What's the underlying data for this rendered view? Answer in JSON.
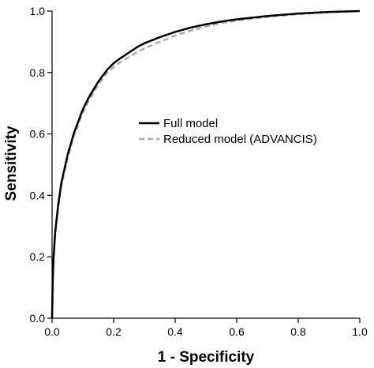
{
  "chart_data": {
    "type": "line",
    "xlabel": "1 - Specificity",
    "ylabel": "Sensitivity",
    "xlim": [
      0,
      1
    ],
    "ylim": [
      0,
      1
    ],
    "x_ticks": [
      "0.0",
      "0.2",
      "0.4",
      "0.6",
      "0.8",
      "1.0"
    ],
    "y_ticks": [
      "0.0",
      "0.2",
      "0.4",
      "0.6",
      "0.8",
      "1.0"
    ],
    "grid": false,
    "legend_position": "center-right",
    "series": [
      {
        "name": "Full model",
        "color": "#000000",
        "style": "solid",
        "x": [
          0,
          0.002,
          0.005,
          0.01,
          0.02,
          0.03,
          0.05,
          0.07,
          0.1,
          0.12,
          0.15,
          0.18,
          0.2,
          0.22,
          0.25,
          0.28,
          0.3,
          0.35,
          0.4,
          0.45,
          0.5,
          0.55,
          0.6,
          0.7,
          0.8,
          0.9,
          1.0
        ],
        "y": [
          0.0,
          0.12,
          0.2,
          0.28,
          0.37,
          0.44,
          0.53,
          0.6,
          0.68,
          0.72,
          0.77,
          0.81,
          0.83,
          0.845,
          0.865,
          0.885,
          0.895,
          0.915,
          0.932,
          0.946,
          0.957,
          0.966,
          0.973,
          0.984,
          0.992,
          0.997,
          1.0
        ]
      },
      {
        "name": "Reduced model (ADVANCIS)",
        "color": "#aaaaaa",
        "style": "dashed",
        "x": [
          0,
          0.002,
          0.005,
          0.01,
          0.02,
          0.03,
          0.05,
          0.07,
          0.1,
          0.12,
          0.15,
          0.18,
          0.2,
          0.22,
          0.25,
          0.28,
          0.3,
          0.35,
          0.4,
          0.45,
          0.5,
          0.55,
          0.6,
          0.7,
          0.8,
          0.9,
          1.0
        ],
        "y": [
          0.0,
          0.11,
          0.19,
          0.27,
          0.36,
          0.43,
          0.52,
          0.59,
          0.67,
          0.71,
          0.76,
          0.8,
          0.818,
          0.832,
          0.85,
          0.868,
          0.878,
          0.9,
          0.92,
          0.936,
          0.95,
          0.961,
          0.969,
          0.981,
          0.99,
          0.996,
          1.0
        ]
      }
    ]
  }
}
